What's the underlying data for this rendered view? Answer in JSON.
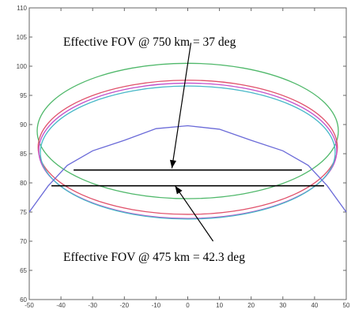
{
  "chart_data": {
    "type": "line",
    "xlim": [
      -50,
      50
    ],
    "ylim": [
      60,
      110
    ],
    "x_ticks": [
      -50,
      -40,
      -30,
      -20,
      -10,
      0,
      10,
      20,
      30,
      40,
      50
    ],
    "y_ticks": [
      60,
      65,
      70,
      75,
      80,
      85,
      90,
      95,
      100,
      105,
      110
    ],
    "grid": false,
    "legend": "none",
    "title": "",
    "xlabel": "",
    "ylabel": "",
    "series": [
      {
        "type": "ellipse",
        "color": "#4fb86a",
        "center": [
          0,
          88.9
        ],
        "radius_x": 47.5,
        "radius_y": 11.6
      },
      {
        "type": "ellipse",
        "color": "#e0506a",
        "center": [
          0,
          86.1
        ],
        "radius_x": 47.2,
        "radius_y": 11.5
      },
      {
        "type": "ellipse",
        "color": "#c24fc9",
        "center": [
          0,
          85.5
        ],
        "radius_x": 47.0,
        "radius_y": 11.6
      },
      {
        "type": "ellipse",
        "color": "#46b8c8",
        "center": [
          0,
          85.2
        ],
        "radius_x": 46.5,
        "radius_y": 11.4
      },
      {
        "type": "polyline",
        "color": "#6a6ad8",
        "x": [
          -50,
          -44,
          -38,
          -30,
          -20,
          -10,
          0,
          10,
          20,
          30,
          38,
          44,
          50
        ],
        "y": [
          75,
          79.5,
          83,
          85.5,
          87.3,
          89.3,
          89.8,
          89.2,
          87.3,
          85.5,
          83,
          79.5,
          75
        ]
      }
    ],
    "reference_lines": [
      {
        "y": 82.2,
        "x": [
          -36,
          36
        ]
      },
      {
        "y": 79.5,
        "x": [
          -43,
          43
        ]
      }
    ],
    "annotations": [
      {
        "text": "Effective FOV  @ 750 km = 37 deg",
        "arrow_from": [
          1,
          104
        ],
        "arrow_to": [
          -5,
          82.5
        ]
      },
      {
        "text": "Effective FOV  @ 475 km = 42.3 deg",
        "arrow_from": [
          8,
          70
        ],
        "arrow_to": [
          -4,
          79.5
        ]
      }
    ]
  }
}
